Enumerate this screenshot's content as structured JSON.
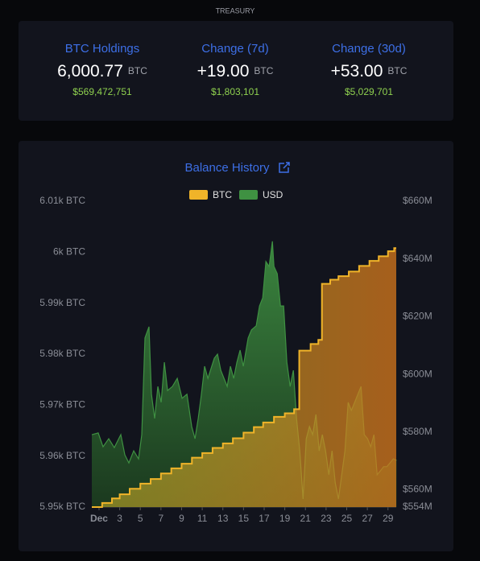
{
  "header": "TREASURY",
  "stats": [
    {
      "label": "BTC Holdings",
      "value": "6,000.77",
      "unit": "BTC",
      "usd": "$569,472,751"
    },
    {
      "label": "Change (7d)",
      "value": "+19.00",
      "unit": "BTC",
      "usd": "$1,803,101"
    },
    {
      "label": "Change (30d)",
      "value": "+53.00",
      "unit": "BTC",
      "usd": "$5,029,701"
    }
  ],
  "chart_data": {
    "type": "line",
    "title": "Balance History",
    "xlim": [
      0.3,
      29.8
    ],
    "xticks": [
      {
        "value": 1,
        "label": "Dec"
      },
      3,
      5,
      7,
      9,
      11,
      13,
      15,
      17,
      19,
      21,
      23,
      25,
      27,
      29
    ],
    "ylim": [
      5950,
      6010
    ],
    "yticks": [
      {
        "value": 5950,
        "label": "5.95k BTC"
      },
      {
        "value": 5960,
        "label": "5.96k BTC"
      },
      {
        "value": 5970,
        "label": "5.97k BTC"
      },
      {
        "value": 5980,
        "label": "5.98k BTC"
      },
      {
        "value": 5990,
        "label": "5.99k BTC"
      },
      {
        "value": 6000,
        "label": "6k BTC"
      },
      {
        "value": 6010,
        "label": "6.01k BTC"
      }
    ],
    "y2lim": [
      554,
      660
    ],
    "y2ticks": [
      {
        "value": 554,
        "label": "$554M"
      },
      {
        "value": 560,
        "label": "$560M"
      },
      {
        "value": 580,
        "label": "$580M"
      },
      {
        "value": 600,
        "label": "$600M"
      },
      {
        "value": 620,
        "label": "$620M"
      },
      {
        "value": 640,
        "label": "$640M"
      },
      {
        "value": 660,
        "label": "$660M"
      }
    ],
    "grid": false,
    "legend": "top",
    "series": [
      {
        "name": "BTC",
        "color": "#f0b429",
        "step": true,
        "x": [
          0.3,
          1.3,
          2.25,
          3.0,
          3.97,
          5.0,
          6.0,
          7.0,
          8.0,
          9.0,
          10.0,
          11.0,
          12.0,
          13.0,
          13.97,
          15.0,
          16.0,
          16.9,
          17.95,
          19.0,
          19.9,
          20.4,
          21.5,
          22.25,
          22.6,
          23.4,
          24.2,
          25.2,
          26.2,
          27.2,
          28.1,
          29.0,
          29.6
        ],
        "values": [
          5950,
          5950.8,
          5951.7,
          5952.5,
          5953.6,
          5954.6,
          5955.5,
          5956.6,
          5957.6,
          5958.5,
          5959.7,
          5960.6,
          5961.6,
          5962.5,
          5963.5,
          5964.6,
          5965.7,
          5966.6,
          5967.7,
          5968.4,
          5969.2,
          5980.7,
          5982.0,
          5982.8,
          5993.8,
          5994.6,
          5995.3,
          5996.2,
          5997.3,
          5998.3,
          5999.2,
          6000.2,
          6000.8
        ]
      },
      {
        "name": "USD",
        "color": "#3f9142",
        "axis": "y2",
        "x": [
          0.3,
          0.92,
          1.39,
          1.94,
          2.48,
          3.11,
          3.5,
          3.89,
          4.36,
          4.83,
          5.14,
          5.45,
          5.84,
          6.08,
          6.39,
          6.7,
          7.02,
          7.33,
          7.64,
          8.11,
          8.58,
          9.05,
          9.52,
          9.98,
          10.3,
          10.61,
          10.92,
          11.23,
          11.55,
          12.17,
          12.48,
          12.8,
          13.11,
          13.42,
          13.73,
          14.05,
          14.36,
          14.67,
          14.98,
          15.45,
          15.77,
          16.23,
          16.55,
          16.86,
          17.17,
          17.48,
          17.8,
          17.95,
          18.27,
          18.58,
          18.89,
          19.2,
          19.52,
          19.83,
          20.14,
          20.45,
          20.77,
          21.08,
          21.39,
          21.7,
          22.02,
          22.33,
          22.64,
          22.95,
          23.27,
          23.58,
          23.89,
          24.2,
          24.52,
          24.83,
          25.14,
          25.45,
          25.77,
          26.08,
          26.39,
          26.7,
          27.02,
          27.33,
          27.64,
          27.95,
          28.27,
          28.58,
          28.89,
          29.2,
          29.52,
          29.83
        ],
        "values": [
          579.1,
          579.7,
          574.9,
          577.7,
          574.6,
          579.1,
          572.1,
          569.3,
          573.5,
          570.7,
          579.1,
          612.6,
          616.5,
          593.1,
          584.7,
          595.8,
          590.3,
          604.2,
          594.4,
          595.8,
          598.6,
          591.7,
          593.1,
          581.9,
          577.7,
          584.7,
          593.1,
          602.8,
          598.6,
          605.6,
          607.0,
          601.4,
          598.6,
          595.8,
          602.8,
          598.6,
          604.2,
          608.4,
          602.8,
          612.6,
          615.4,
          616.8,
          623.7,
          626.5,
          639.1,
          637.4,
          646.1,
          637.4,
          634.9,
          623.7,
          623.7,
          604.2,
          595.8,
          601.4,
          584.7,
          573.5,
          556.8,
          577.7,
          581.9,
          579.1,
          586.1,
          573.5,
          579.1,
          573.5,
          565.2,
          573.5,
          562.4,
          556.8,
          565.2,
          573.5,
          590.3,
          587.5,
          590.3,
          593.1,
          595.8,
          579.1,
          577.7,
          574.9,
          579.1,
          565.2,
          566.6,
          568.0,
          568.0,
          569.3,
          570.7,
          570.2
        ]
      }
    ]
  }
}
